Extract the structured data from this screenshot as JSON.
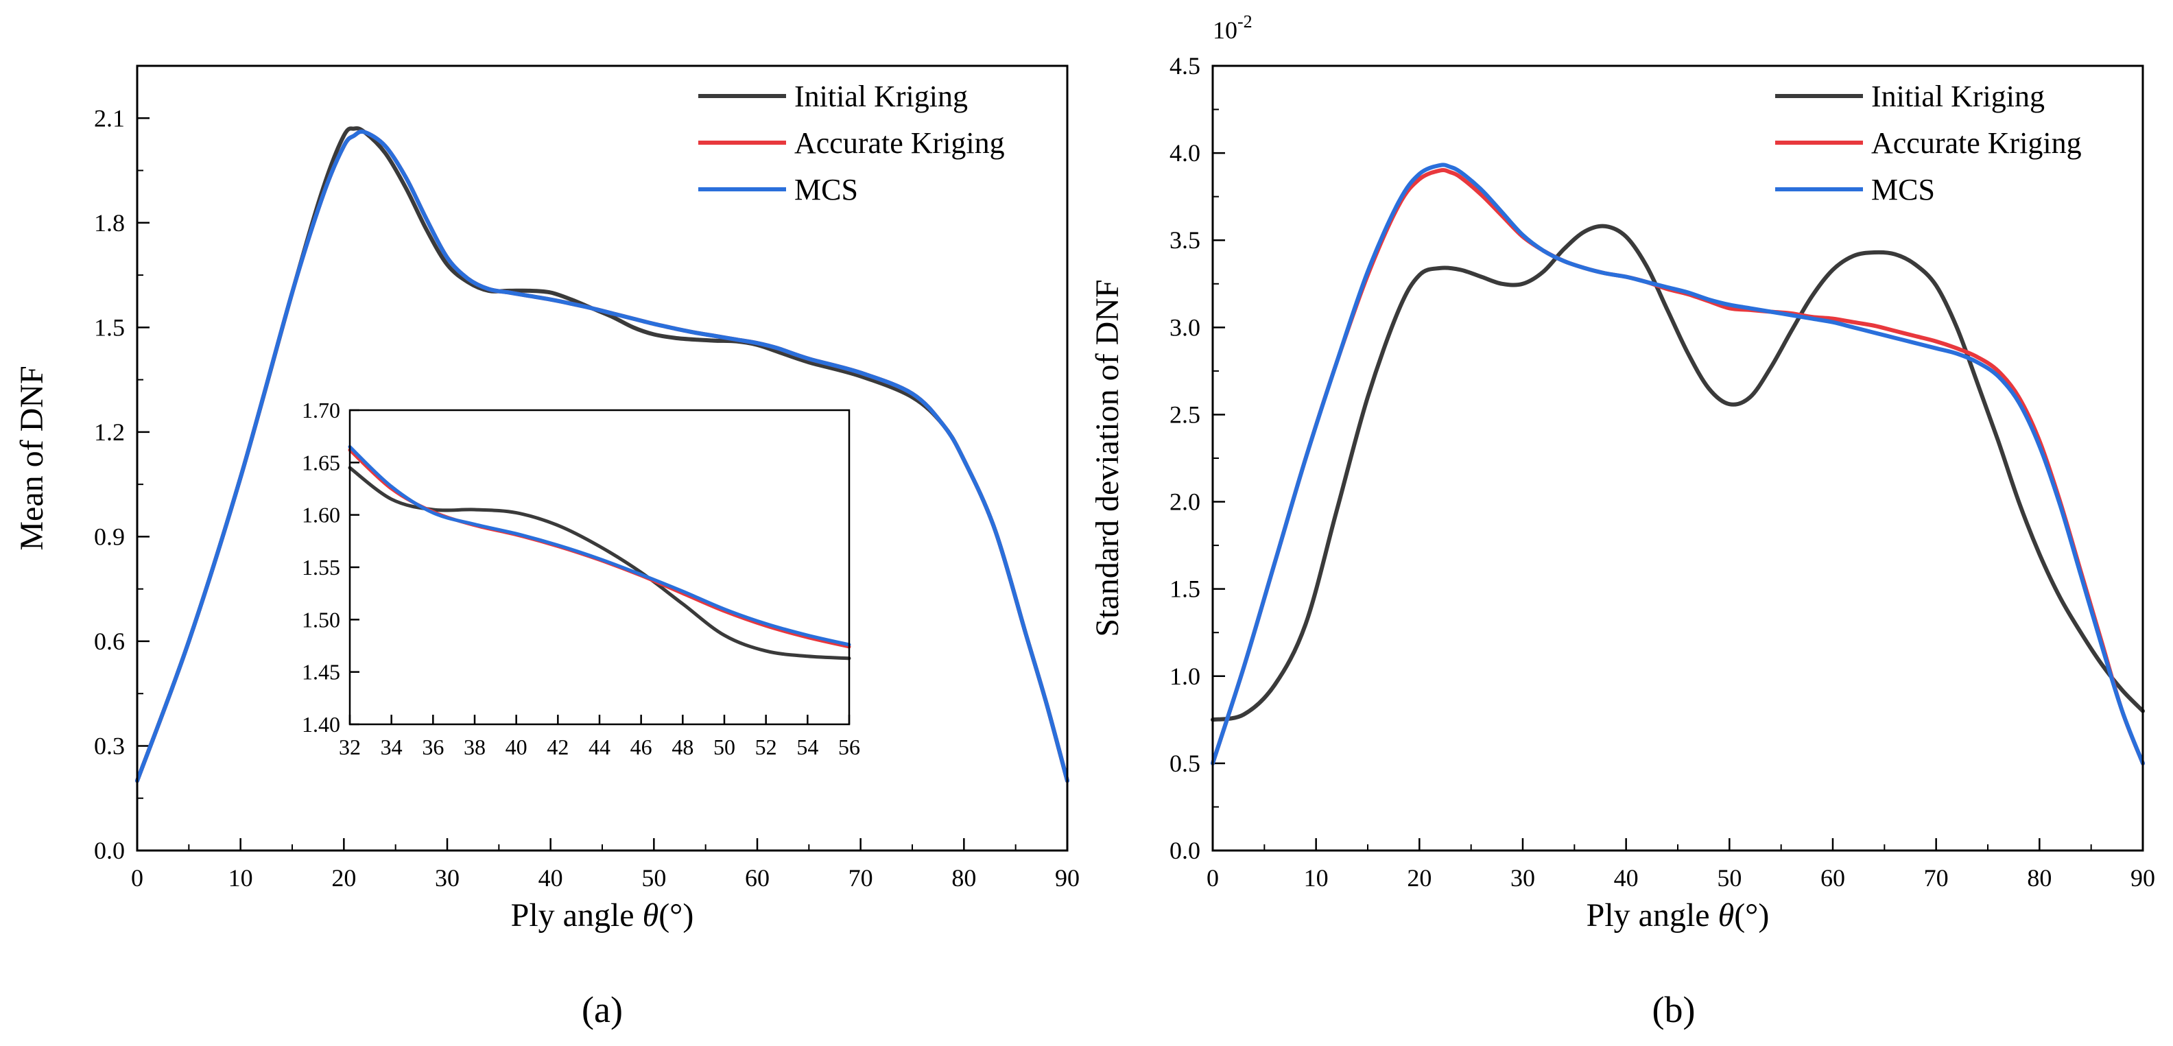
{
  "chart_data": [
    {
      "id": "a",
      "type": "line",
      "caption": "(a)",
      "xlabel_prefix": "Ply angle ",
      "xlabel_var": "θ",
      "xlabel_suffix": "(°)",
      "ylabel": "Mean of DNF",
      "xlim": [
        0,
        90
      ],
      "ylim": [
        0,
        2.25
      ],
      "xticks": [
        0,
        10,
        20,
        30,
        40,
        50,
        60,
        70,
        80,
        90
      ],
      "xtick_labels": [
        "0",
        "10",
        "20",
        "30",
        "40",
        "50",
        "60",
        "70",
        "80",
        "90"
      ],
      "yticks": [
        0,
        0.3,
        0.6,
        0.9,
        1.2,
        1.5,
        1.8,
        2.1
      ],
      "ytick_labels": [
        "0.0",
        "0.3",
        "0.6",
        "0.9",
        "1.2",
        "1.5",
        "1.8",
        "2.1"
      ],
      "legend_position": "top-right",
      "series": [
        {
          "name": "Initial Kriging",
          "color": "#3a3a3a",
          "x": [
            0,
            5,
            10,
            15,
            18,
            20,
            21,
            22,
            24,
            26,
            28,
            30,
            32,
            34,
            36,
            38,
            40,
            42,
            44,
            46,
            48,
            50,
            52,
            54,
            56,
            58,
            60,
            62,
            65,
            70,
            75,
            78,
            80,
            83,
            86,
            88,
            90
          ],
          "y": [
            0.2,
            0.6,
            1.07,
            1.6,
            1.9,
            2.05,
            2.07,
            2.06,
            2.0,
            1.9,
            1.78,
            1.68,
            1.63,
            1.605,
            1.605,
            1.605,
            1.6,
            1.58,
            1.555,
            1.53,
            1.5,
            1.48,
            1.47,
            1.465,
            1.462,
            1.46,
            1.45,
            1.43,
            1.4,
            1.36,
            1.3,
            1.22,
            1.12,
            0.92,
            0.62,
            0.42,
            0.2
          ]
        },
        {
          "name": "Accurate Kriging",
          "color": "#e8383d",
          "x": [
            0,
            5,
            10,
            15,
            18,
            20,
            21,
            22,
            24,
            26,
            28,
            30,
            32,
            34,
            36,
            38,
            40,
            42,
            44,
            46,
            48,
            50,
            52,
            54,
            56,
            58,
            60,
            62,
            65,
            70,
            75,
            78,
            80,
            83,
            86,
            88,
            90
          ],
          "y": [
            0.2,
            0.6,
            1.07,
            1.6,
            1.88,
            2.02,
            2.05,
            2.06,
            2.02,
            1.93,
            1.81,
            1.7,
            1.64,
            1.61,
            1.6,
            1.59,
            1.58,
            1.568,
            1.555,
            1.54,
            1.525,
            1.51,
            1.497,
            1.485,
            1.475,
            1.465,
            1.455,
            1.44,
            1.41,
            1.37,
            1.31,
            1.22,
            1.12,
            0.92,
            0.62,
            0.42,
            0.2
          ]
        },
        {
          "name": "MCS",
          "color": "#2a6fdb",
          "x": [
            0,
            5,
            10,
            15,
            18,
            20,
            21,
            22,
            24,
            26,
            28,
            30,
            32,
            34,
            36,
            38,
            40,
            42,
            44,
            46,
            48,
            50,
            52,
            54,
            56,
            58,
            60,
            62,
            65,
            70,
            75,
            78,
            80,
            83,
            86,
            88,
            90
          ],
          "y": [
            0.2,
            0.6,
            1.07,
            1.6,
            1.88,
            2.02,
            2.05,
            2.06,
            2.02,
            1.93,
            1.81,
            1.7,
            1.64,
            1.61,
            1.6,
            1.59,
            1.58,
            1.568,
            1.555,
            1.54,
            1.525,
            1.51,
            1.497,
            1.485,
            1.475,
            1.465,
            1.455,
            1.44,
            1.41,
            1.37,
            1.31,
            1.22,
            1.12,
            0.92,
            0.62,
            0.42,
            0.2
          ]
        }
      ],
      "inset": {
        "xlim": [
          32,
          56
        ],
        "ylim": [
          1.4,
          1.7
        ],
        "xticks": [
          32,
          34,
          36,
          38,
          40,
          42,
          44,
          46,
          48,
          50,
          52,
          54,
          56
        ],
        "xtick_labels": [
          "32",
          "34",
          "36",
          "38",
          "40",
          "42",
          "44",
          "46",
          "48",
          "50",
          "52",
          "54",
          "56"
        ],
        "yticks": [
          1.4,
          1.45,
          1.5,
          1.55,
          1.6,
          1.65,
          1.7
        ],
        "ytick_labels": [
          "1.40",
          "1.45",
          "1.50",
          "1.55",
          "1.60",
          "1.65",
          "1.70"
        ],
        "series": [
          {
            "name": "Initial Kriging",
            "color": "#3a3a3a",
            "x": [
              32,
              34,
              36,
              38,
              40,
              42,
              44,
              46,
              48,
              50,
              52,
              54,
              56
            ],
            "y": [
              1.645,
              1.615,
              1.605,
              1.605,
              1.602,
              1.59,
              1.57,
              1.545,
              1.515,
              1.485,
              1.47,
              1.465,
              1.463
            ]
          },
          {
            "name": "Accurate Kriging",
            "color": "#e8383d",
            "x": [
              32,
              34,
              36,
              38,
              40,
              42,
              44,
              46,
              48,
              50,
              52,
              54,
              56
            ],
            "y": [
              1.662,
              1.625,
              1.603,
              1.59,
              1.581,
              1.57,
              1.557,
              1.542,
              1.525,
              1.508,
              1.494,
              1.483,
              1.474
            ]
          },
          {
            "name": "MCS",
            "color": "#2a6fdb",
            "x": [
              32,
              34,
              36,
              38,
              40,
              42,
              44,
              46,
              48,
              50,
              52,
              54,
              56
            ],
            "y": [
              1.665,
              1.627,
              1.602,
              1.591,
              1.582,
              1.571,
              1.558,
              1.543,
              1.527,
              1.51,
              1.496,
              1.485,
              1.476
            ]
          }
        ]
      }
    },
    {
      "id": "b",
      "type": "line",
      "caption": "(b)",
      "xlabel_prefix": "Ply angle ",
      "xlabel_var": "θ",
      "xlabel_suffix": "(°)",
      "ylabel": "Standard deviation of DNF",
      "y_exponent_label": "10",
      "y_exponent_power": "-2",
      "xlim": [
        0,
        90
      ],
      "ylim": [
        0,
        4.5
      ],
      "xticks": [
        0,
        10,
        20,
        30,
        40,
        50,
        60,
        70,
        80,
        90
      ],
      "xtick_labels": [
        "0",
        "10",
        "20",
        "30",
        "40",
        "50",
        "60",
        "70",
        "80",
        "90"
      ],
      "yticks": [
        0,
        0.5,
        1.0,
        1.5,
        2.0,
        2.5,
        3.0,
        3.5,
        4.0,
        4.5
      ],
      "ytick_labels": [
        "0.0",
        "0.5",
        "1.0",
        "1.5",
        "2.0",
        "2.5",
        "3.0",
        "3.5",
        "4.0",
        "4.5"
      ],
      "legend_position": "top-right",
      "series": [
        {
          "name": "Initial Kriging",
          "color": "#3a3a3a",
          "x": [
            0,
            3,
            6,
            9,
            12,
            15,
            18,
            20,
            22,
            24,
            26,
            28,
            30,
            32,
            34,
            36,
            38,
            40,
            42,
            44,
            46,
            48,
            50,
            52,
            54,
            56,
            58,
            60,
            62,
            64,
            66,
            68,
            70,
            72,
            74,
            76,
            78,
            80,
            82,
            84,
            86,
            88,
            90
          ],
          "y": [
            0.75,
            0.78,
            0.95,
            1.3,
            1.95,
            2.6,
            3.1,
            3.3,
            3.34,
            3.33,
            3.29,
            3.25,
            3.25,
            3.32,
            3.45,
            3.55,
            3.58,
            3.52,
            3.35,
            3.1,
            2.85,
            2.65,
            2.56,
            2.6,
            2.77,
            2.98,
            3.18,
            3.33,
            3.41,
            3.43,
            3.42,
            3.36,
            3.24,
            3.0,
            2.68,
            2.35,
            2.0,
            1.7,
            1.45,
            1.25,
            1.07,
            0.92,
            0.8
          ]
        },
        {
          "name": "Accurate Kriging",
          "color": "#e8383d",
          "x": [
            0,
            3,
            6,
            9,
            12,
            15,
            18,
            20,
            22,
            23,
            24,
            26,
            28,
            30,
            32,
            34,
            36,
            38,
            40,
            42,
            44,
            46,
            48,
            50,
            52,
            54,
            56,
            58,
            60,
            62,
            64,
            66,
            68,
            70,
            72,
            74,
            76,
            78,
            80,
            82,
            84,
            86,
            88,
            90
          ],
          "y": [
            0.5,
            1.05,
            1.65,
            2.25,
            2.8,
            3.3,
            3.7,
            3.85,
            3.9,
            3.89,
            3.86,
            3.76,
            3.64,
            3.52,
            3.44,
            3.38,
            3.34,
            3.31,
            3.29,
            3.26,
            3.22,
            3.19,
            3.15,
            3.11,
            3.1,
            3.09,
            3.08,
            3.06,
            3.05,
            3.03,
            3.01,
            2.98,
            2.95,
            2.92,
            2.88,
            2.83,
            2.75,
            2.6,
            2.35,
            2.0,
            1.6,
            1.2,
            0.8,
            0.5
          ]
        },
        {
          "name": "MCS",
          "color": "#2a6fdb",
          "x": [
            0,
            3,
            6,
            9,
            12,
            15,
            18,
            20,
            22,
            23,
            24,
            26,
            28,
            30,
            32,
            34,
            36,
            38,
            40,
            42,
            44,
            46,
            48,
            50,
            52,
            54,
            56,
            58,
            60,
            62,
            64,
            66,
            68,
            70,
            72,
            74,
            76,
            78,
            80,
            82,
            84,
            86,
            88,
            90
          ],
          "y": [
            0.5,
            1.05,
            1.65,
            2.25,
            2.8,
            3.32,
            3.72,
            3.88,
            3.93,
            3.92,
            3.89,
            3.79,
            3.66,
            3.53,
            3.44,
            3.38,
            3.34,
            3.31,
            3.29,
            3.26,
            3.23,
            3.2,
            3.16,
            3.13,
            3.11,
            3.09,
            3.07,
            3.05,
            3.03,
            3.0,
            2.97,
            2.94,
            2.91,
            2.88,
            2.85,
            2.8,
            2.72,
            2.57,
            2.32,
            1.98,
            1.58,
            1.18,
            0.8,
            0.5
          ]
        }
      ]
    }
  ]
}
